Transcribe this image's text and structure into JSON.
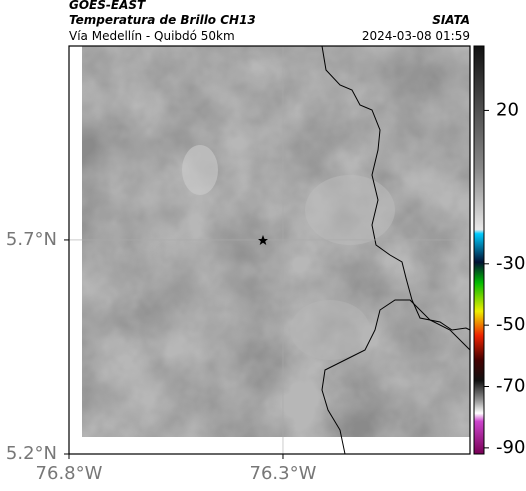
{
  "header": {
    "source": "GOES-EAST",
    "product": "Temperatura de Brillo CH13",
    "region": "Vía Medellín - Quibdó 50km",
    "agency": "SIATA",
    "datetime": "2024-03-08 01:59"
  },
  "map": {
    "xlim": [
      -76.8,
      -75.863
    ],
    "ylim": [
      5.2,
      6.153
    ],
    "xticks": [
      {
        "value": -76.8,
        "label": "76.8°W"
      },
      {
        "value": -76.3,
        "label": "76.3°W"
      }
    ],
    "yticks": [
      {
        "value": 5.2,
        "label": "5.2°N"
      },
      {
        "value": 5.7,
        "label": "5.7°N"
      }
    ]
  },
  "colorbar": {
    "lim": [
      -92,
      41
    ],
    "ticks": [
      20,
      -30,
      -50,
      -70,
      -90
    ]
  }
}
